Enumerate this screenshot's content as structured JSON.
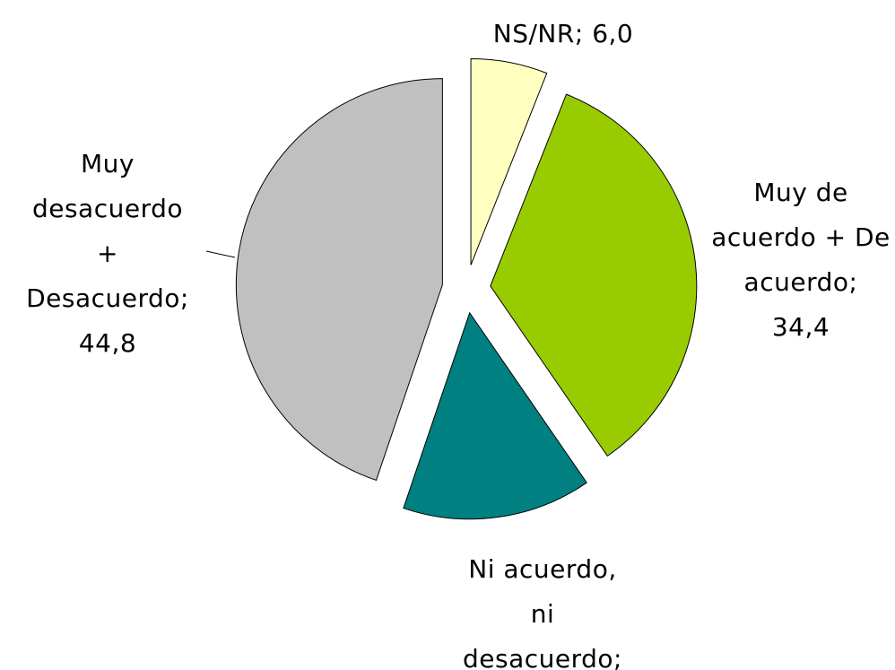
{
  "chart_data": {
    "type": "pie",
    "categories": [
      "NS/NR;",
      "Muy de acuerdo + De acuerdo;",
      "Ni acuerdo, ni desacuerdo;",
      "Muy desacuerdo + Desacuerdo;"
    ],
    "values": [
      6.0,
      34.4,
      14.8,
      44.8
    ],
    "value_labels": [
      "6,0",
      "34,4",
      null,
      "44,8"
    ],
    "colors": [
      "#ffffc0",
      "#99cc00",
      "#008080",
      "#c0c0c0"
    ]
  }
}
